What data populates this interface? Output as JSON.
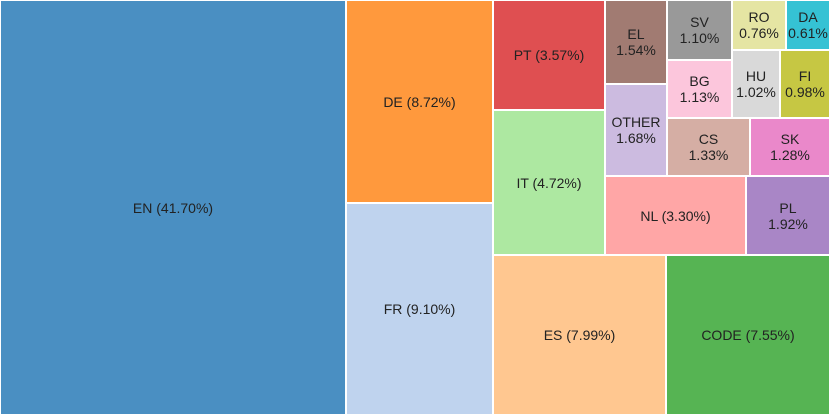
{
  "chart_data": {
    "type": "treemap",
    "title": "",
    "leaves": [
      {
        "name": "EN",
        "value": 41.7,
        "label": "EN (41.70%)",
        "color": "#4a8fc2"
      },
      {
        "name": "DE",
        "value": 8.72,
        "label": "DE (8.72%)",
        "color": "#ff993d"
      },
      {
        "name": "FR",
        "value": 9.1,
        "label": "FR (9.10%)",
        "color": "#bfd3ee"
      },
      {
        "name": "PT",
        "value": 3.57,
        "label": "PT (3.57%)",
        "color": "#df4f51"
      },
      {
        "name": "IT",
        "value": 4.72,
        "label": "IT (4.72%)",
        "color": "#ade8a1"
      },
      {
        "name": "ES",
        "value": 7.99,
        "label": "ES (7.99%)",
        "color": "#ffc790"
      },
      {
        "name": "CODE",
        "value": 7.55,
        "label": "CODE (7.55%)",
        "color": "#56b453"
      },
      {
        "name": "EL",
        "value": 1.54,
        "label": "EL\n1.54%",
        "color": "#a17b72"
      },
      {
        "name": "SV",
        "value": 1.1,
        "label": "SV\n1.10%",
        "color": "#999999"
      },
      {
        "name": "RO",
        "value": 0.76,
        "label": "RO\n0.76%",
        "color": "#e5e5a3"
      },
      {
        "name": "DA",
        "value": 0.61,
        "label": "DA\n0.61%",
        "color": "#35c2d4"
      },
      {
        "name": "OTHER",
        "value": 1.68,
        "label": "OTHER\n1.68%",
        "color": "#ccbbe0"
      },
      {
        "name": "BG",
        "value": 1.13,
        "label": "BG\n1.13%",
        "color": "#fcc6dc"
      },
      {
        "name": "HU",
        "value": 1.02,
        "label": "HU\n1.02%",
        "color": "#d9d9d9"
      },
      {
        "name": "FI",
        "value": 0.98,
        "label": "FI\n0.98%",
        "color": "#c6c743"
      },
      {
        "name": "CS",
        "value": 1.33,
        "label": "CS\n1.33%",
        "color": "#d5aea4"
      },
      {
        "name": "SK",
        "value": 1.28,
        "label": "SK\n1.28%",
        "color": "#ea88ca"
      },
      {
        "name": "NL",
        "value": 3.3,
        "label": "NL (3.30%)",
        "color": "#ffa6a6"
      },
      {
        "name": "PL",
        "value": 1.92,
        "label": "PL\n1.92%",
        "color": "#a986c6"
      }
    ]
  }
}
